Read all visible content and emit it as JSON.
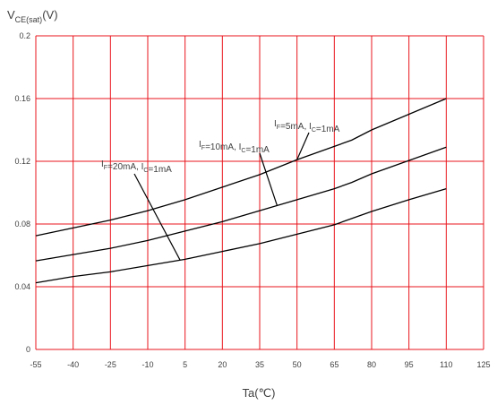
{
  "chart_data": {
    "type": "line",
    "title": "",
    "ylabel": {
      "main": "V",
      "sub": "CE(sat)",
      "unit": "(V)"
    },
    "xlabel": "Ta(℃)",
    "xlim": [
      -55,
      125
    ],
    "ylim": [
      0,
      0.2
    ],
    "x_ticks": [
      "-55",
      "-40",
      "-25",
      "-10",
      "5",
      "20",
      "35",
      "50",
      "65",
      "80",
      "95",
      "110",
      "125"
    ],
    "y_ticks": [
      "0",
      "0.04",
      "0.08",
      "0.12",
      "0.16",
      "0.2"
    ],
    "grid": true,
    "grid_color": "#e8141c",
    "line_color": "#000000",
    "x": [
      -55,
      -40,
      -25,
      -10,
      5,
      20,
      35,
      50,
      65,
      72,
      80,
      95,
      110
    ],
    "series": [
      {
        "values": [
          0.0725,
          0.0775,
          0.0825,
          0.0885,
          0.0955,
          0.1035,
          0.1115,
          0.121,
          0.1295,
          0.1335,
          0.14,
          0.15,
          0.16
        ],
        "label": [
          {
            "text": "I",
            "sub": "F"
          },
          {
            "text": "=5mA, I"
          },
          {
            "text": "",
            "sub": "C"
          },
          {
            "text": "=1mA"
          }
        ],
        "pointer_x": 50
      },
      {
        "values": [
          0.0565,
          0.0605,
          0.0645,
          0.0695,
          0.0755,
          0.0815,
          0.0885,
          0.0955,
          0.1025,
          0.1065,
          0.112,
          0.1205,
          0.129
        ],
        "label": [
          {
            "text": "I",
            "sub": "F"
          },
          {
            "text": "=10mA, I"
          },
          {
            "text": "",
            "sub": "C"
          },
          {
            "text": "=1mA"
          }
        ],
        "pointer_x": 42
      },
      {
        "values": [
          0.0425,
          0.0465,
          0.0495,
          0.0535,
          0.0575,
          0.0625,
          0.0675,
          0.0735,
          0.0795,
          0.0835,
          0.088,
          0.0955,
          0.1025
        ],
        "label": [
          {
            "text": "I",
            "sub": "F"
          },
          {
            "text": "=20mA, I"
          },
          {
            "text": "",
            "sub": "C"
          },
          {
            "text": "=1mA"
          }
        ],
        "pointer_x": 3
      }
    ]
  }
}
